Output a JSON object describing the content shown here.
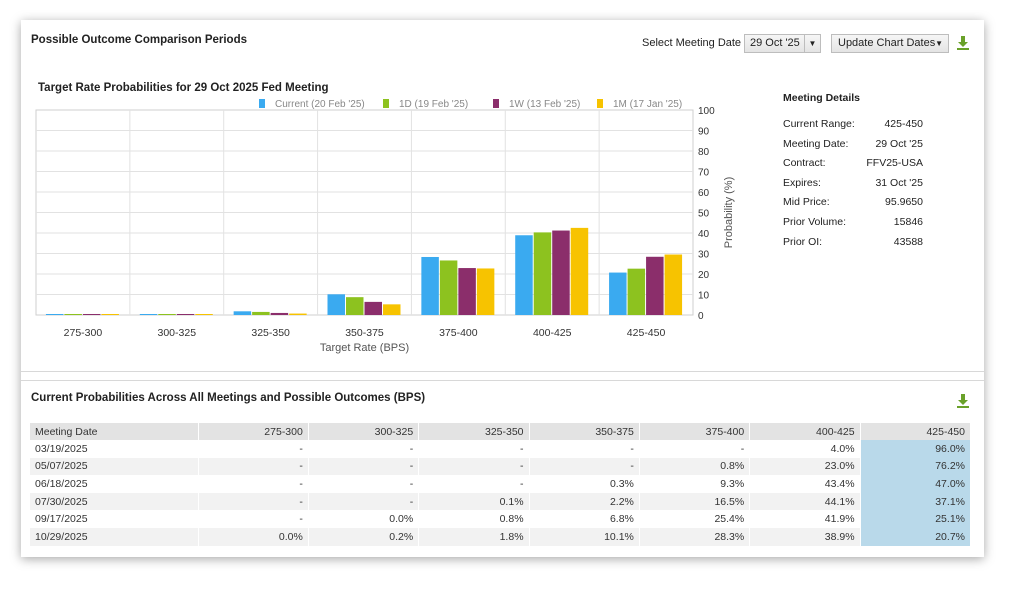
{
  "top_panel": {
    "title": "Possible Outcome Comparison Periods",
    "select_label": "Select Meeting Date",
    "selected_date": "29 Oct '25",
    "update_button": "Update Chart Dates",
    "download_icon": "download-icon"
  },
  "meeting_details": {
    "heading": "Meeting Details",
    "rows": [
      {
        "label": "Current Range:",
        "value": "425-450"
      },
      {
        "label": "Meeting Date:",
        "value": "29 Oct '25"
      },
      {
        "label": "Contract:",
        "value": "FFV25-USA"
      },
      {
        "label": "Expires:",
        "value": "31 Oct '25"
      },
      {
        "label": "Mid Price:",
        "value": "95.9650"
      },
      {
        "label": "Prior Volume:",
        "value": "15846"
      },
      {
        "label": "Prior OI:",
        "value": "43588"
      }
    ]
  },
  "chart_data": {
    "type": "bar",
    "title": "Target Rate Probabilities for 29 Oct 2025 Fed Meeting",
    "xlabel": "Target Rate (BPS)",
    "ylabel": "Probability (%)",
    "ylim": [
      0,
      100
    ],
    "yticks": [
      "0",
      "10",
      "20",
      "30",
      "40",
      "50",
      "60",
      "70",
      "80",
      "90",
      "100"
    ],
    "grid": true,
    "legend_position": "top",
    "categories": [
      "275-300",
      "300-325",
      "325-350",
      "350-375",
      "375-400",
      "400-425",
      "425-450"
    ],
    "series": [
      {
        "name": "Current (20 Feb '25)",
        "color": "#3aaaf0",
        "values": [
          0.0,
          0.2,
          1.8,
          10.1,
          28.3,
          38.9,
          20.7
        ]
      },
      {
        "name": "1D (19 Feb '25)",
        "color": "#8dc21f",
        "values": [
          0.0,
          0.2,
          1.5,
          8.7,
          26.6,
          40.3,
          22.6
        ]
      },
      {
        "name": "1W (13 Feb '25)",
        "color": "#8b2e6b",
        "values": [
          0.0,
          0.1,
          1.0,
          6.4,
          22.9,
          41.2,
          28.4
        ]
      },
      {
        "name": "1M (17 Jan '25)",
        "color": "#f7c300",
        "values": [
          0.0,
          0.1,
          0.7,
          5.2,
          22.7,
          42.5,
          29.5
        ]
      }
    ]
  },
  "bottom_panel": {
    "title": "Current Probabilities Across All Meetings and Possible Outcomes (BPS)",
    "download_icon": "download-icon",
    "columns": [
      "Meeting Date",
      "275-300",
      "300-325",
      "325-350",
      "350-375",
      "375-400",
      "400-425",
      "425-450"
    ],
    "rows": [
      [
        "03/19/2025",
        "-",
        "-",
        "-",
        "-",
        "-",
        "4.0%",
        "96.0%"
      ],
      [
        "05/07/2025",
        "-",
        "-",
        "-",
        "-",
        "0.8%",
        "23.0%",
        "76.2%"
      ],
      [
        "06/18/2025",
        "-",
        "-",
        "-",
        "0.3%",
        "9.3%",
        "43.4%",
        "47.0%"
      ],
      [
        "07/30/2025",
        "-",
        "-",
        "0.1%",
        "2.2%",
        "16.5%",
        "44.1%",
        "37.1%"
      ],
      [
        "09/17/2025",
        "-",
        "0.0%",
        "0.8%",
        "6.8%",
        "25.4%",
        "41.9%",
        "25.1%"
      ],
      [
        "10/29/2025",
        "0.0%",
        "0.2%",
        "1.8%",
        "10.1%",
        "28.3%",
        "38.9%",
        "20.7%"
      ]
    ],
    "highlight_color": "#b9d9ea"
  }
}
